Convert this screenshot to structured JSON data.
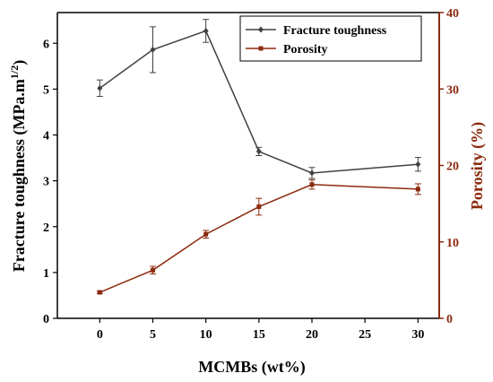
{
  "chart_data": {
    "type": "line",
    "xlabel": "MCMBs (wt%)",
    "ylabel_left": "Fracture toughness (MPa.m",
    "ylabel_left_sup": "1/2",
    "ylabel_left_close": ")",
    "ylabel_right": "Porosity (%)",
    "xlim": [
      -4,
      32
    ],
    "x_ticks": [
      "0",
      "5",
      "10",
      "15",
      "20",
      "25",
      "30"
    ],
    "x_tick_values": [
      0,
      5,
      10,
      15,
      20,
      25,
      30
    ],
    "ylim_left": [
      0,
      6.67
    ],
    "y_left_ticks": [
      "0",
      "1",
      "2",
      "3",
      "4",
      "5",
      "6"
    ],
    "y_left_tick_values": [
      0,
      1,
      2,
      3,
      4,
      5,
      6
    ],
    "ylim_right": [
      0,
      40
    ],
    "y_right_ticks": [
      "0",
      "10",
      "20",
      "30",
      "40"
    ],
    "y_right_tick_values": [
      0,
      10,
      20,
      30,
      40
    ],
    "legend_position": "top-right",
    "series": [
      {
        "name": "Fracture toughness",
        "axis": "left",
        "color": "#404040",
        "marker": "diamond",
        "x": [
          0,
          5,
          10,
          15,
          20,
          30
        ],
        "y": [
          5.02,
          5.86,
          6.27,
          3.64,
          3.17,
          3.36
        ],
        "err": [
          0.18,
          0.5,
          0.25,
          0.09,
          0.12,
          0.15
        ]
      },
      {
        "name": "Porosity",
        "axis": "right",
        "color": "#8B2A0E",
        "marker": "square",
        "x": [
          0,
          5,
          10,
          15,
          20,
          30
        ],
        "y": [
          3.4,
          6.3,
          11.0,
          14.6,
          17.5,
          16.9
        ],
        "err": [
          0.15,
          0.5,
          0.5,
          1.1,
          0.6,
          0.7
        ]
      }
    ]
  }
}
